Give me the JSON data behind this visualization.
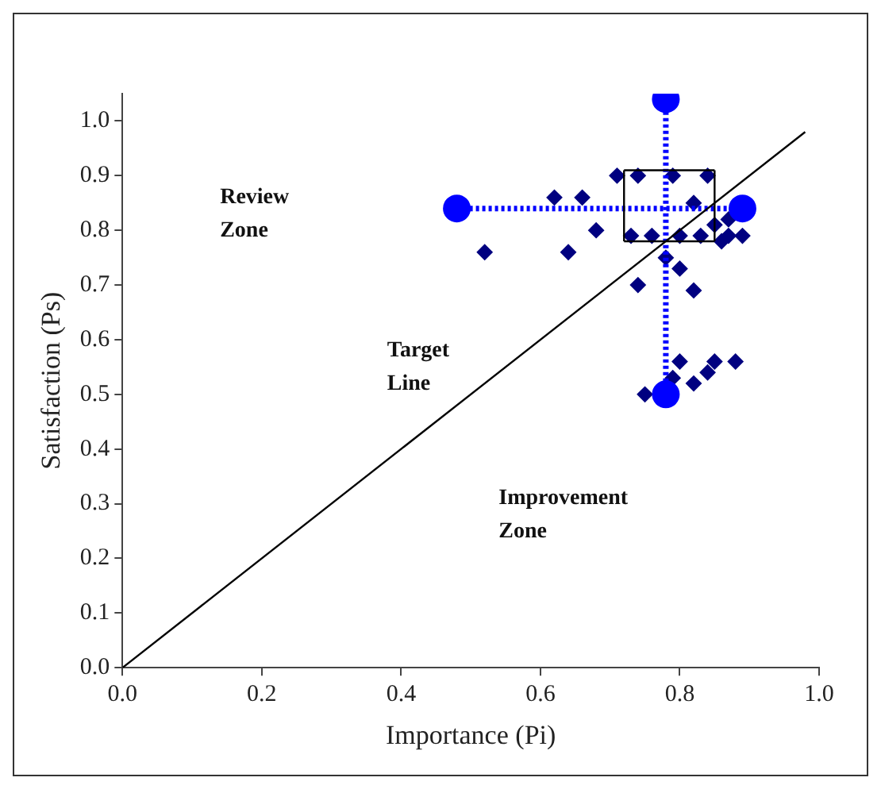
{
  "chart_data": {
    "type": "scatter",
    "xlabel": "Importance (Pi)",
    "ylabel": "Satisfaction (Ps)",
    "xlim": [
      0,
      1.0
    ],
    "ylim": [
      0,
      1.05
    ],
    "xticks": [
      {
        "value": 0,
        "label": "0.0"
      },
      0.2,
      0.4,
      0.6,
      0.8,
      {
        "value": 1,
        "label": "1.0"
      }
    ],
    "yticks": [
      {
        "value": 0,
        "label": "0.0"
      },
      0.1,
      0.2,
      0.3,
      0.4,
      0.5,
      0.6,
      0.7,
      0.8,
      0.9,
      {
        "value": 1,
        "label": "1.0"
      }
    ],
    "grid": false,
    "legend": false,
    "series": [
      {
        "color": "#000080",
        "marker": "diamond",
        "x": [
          0.52,
          0.62,
          0.66,
          0.64,
          0.68,
          0.71,
          0.74,
          0.79,
          0.84,
          0.82,
          0.73,
          0.76,
          0.8,
          0.83,
          0.85,
          0.87,
          0.87,
          0.86,
          0.89,
          0.78,
          0.8,
          0.74,
          0.82,
          0.8,
          0.85,
          0.88,
          0.79,
          0.84,
          0.82,
          0.75
        ],
        "values": [
          0.76,
          0.86,
          0.86,
          0.76,
          0.8,
          0.9,
          0.9,
          0.9,
          0.9,
          0.85,
          0.79,
          0.79,
          0.79,
          0.79,
          0.81,
          0.79,
          0.82,
          0.78,
          0.79,
          0.75,
          0.73,
          0.7,
          0.69,
          0.56,
          0.56,
          0.56,
          0.53,
          0.54,
          0.52,
          0.5
        ]
      },
      {
        "type": "line",
        "color": "#0000ff",
        "marker": "circle",
        "line_style": "dotted",
        "x": [
          0.78,
          0.78
        ],
        "values": [
          0.5,
          1.04
        ]
      },
      {
        "type": "line",
        "color": "#0000ff",
        "marker": "circle",
        "line_style": "dotted",
        "x": [
          0.48,
          0.89
        ],
        "values": [
          0.84,
          0.84
        ]
      },
      {
        "type": "line",
        "color": "#000000",
        "marker": "none",
        "line_style": "solid",
        "x": [
          0.72,
          0.85
        ],
        "values": [
          0.91,
          0.91
        ]
      },
      {
        "type": "line",
        "color": "#000000",
        "marker": "none",
        "line_style": "solid",
        "x": [
          0.72,
          0.85
        ],
        "values": [
          0.78,
          0.78
        ]
      },
      {
        "type": "line",
        "color": "#000000",
        "marker": "none",
        "line_style": "solid",
        "x": [
          0.72,
          0.72
        ],
        "values": [
          0.78,
          0.91
        ]
      },
      {
        "type": "line",
        "color": "#000000",
        "marker": "none",
        "line_style": "solid",
        "x": [
          0.85,
          0.85
        ],
        "values": [
          0.78,
          0.91
        ]
      },
      {
        "type": "line",
        "color": "#000000",
        "marker": "none",
        "line_style": "solid",
        "x": [
          0,
          0.98
        ],
        "values": [
          0,
          0.98
        ]
      }
    ],
    "annotations": [
      "Review Zone",
      "Target Line",
      "Improvement Zone"
    ]
  }
}
